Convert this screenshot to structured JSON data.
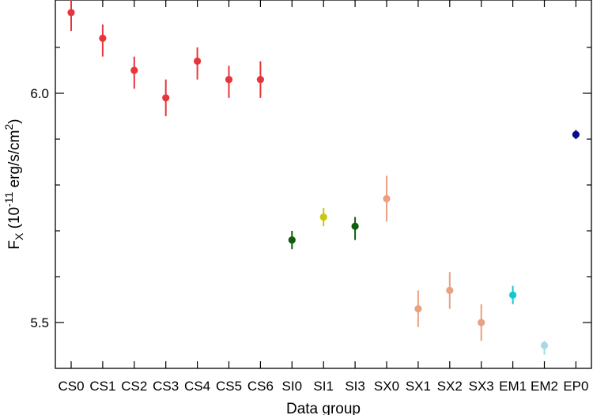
{
  "chart_data": {
    "type": "scatter",
    "xlabel": "Data group",
    "ylabel": {
      "base": "F",
      "sub": "X",
      "open": " (10",
      "exp": "-11",
      "unit": " erg/s/cm",
      "sq": "2",
      "close": ")"
    },
    "ylim": [
      5.4,
      6.18
    ],
    "yticks_major": [
      5.5,
      6.0
    ],
    "ytick_labels": [
      "5.5",
      "6.0"
    ],
    "yticks_minor": [
      5.6,
      5.7,
      5.8,
      5.9,
      6.1
    ],
    "grid": false,
    "categories": [
      "CS0",
      "CS1",
      "CS2",
      "CS3",
      "CS4",
      "CS5",
      "CS6",
      "SI0",
      "SI1",
      "SI3",
      "SX0",
      "SX1",
      "SX2",
      "SX3",
      "EM1",
      "EM2",
      "EP0"
    ],
    "points": [
      {
        "x": "CS0",
        "y": 6.176,
        "err_low": 0.04,
        "err_high": 0.04,
        "color": "#e8353b"
      },
      {
        "x": "CS1",
        "y": 6.12,
        "err_low": 0.04,
        "err_high": 0.03,
        "color": "#e8353b"
      },
      {
        "x": "CS2",
        "y": 6.05,
        "err_low": 0.04,
        "err_high": 0.03,
        "color": "#e8353b"
      },
      {
        "x": "CS3",
        "y": 5.99,
        "err_low": 0.04,
        "err_high": 0.04,
        "color": "#e8353b"
      },
      {
        "x": "CS4",
        "y": 6.07,
        "err_low": 0.04,
        "err_high": 0.03,
        "color": "#e8353b"
      },
      {
        "x": "CS5",
        "y": 6.03,
        "err_low": 0.04,
        "err_high": 0.03,
        "color": "#e8353b"
      },
      {
        "x": "CS6",
        "y": 6.03,
        "err_low": 0.04,
        "err_high": 0.04,
        "color": "#e8353b"
      },
      {
        "x": "SI0",
        "y": 5.68,
        "err_low": 0.02,
        "err_high": 0.02,
        "color": "#0c5f0c"
      },
      {
        "x": "SI1",
        "y": 5.73,
        "err_low": 0.02,
        "err_high": 0.02,
        "color": "#c8c814"
      },
      {
        "x": "SI3",
        "y": 5.71,
        "err_low": 0.03,
        "err_high": 0.02,
        "color": "#0c5f0c"
      },
      {
        "x": "SX0",
        "y": 5.77,
        "err_low": 0.05,
        "err_high": 0.05,
        "color": "#e9a083"
      },
      {
        "x": "SX1",
        "y": 5.53,
        "err_low": 0.04,
        "err_high": 0.04,
        "color": "#e9a083"
      },
      {
        "x": "SX2",
        "y": 5.57,
        "err_low": 0.04,
        "err_high": 0.04,
        "color": "#e9a083"
      },
      {
        "x": "SX3",
        "y": 5.5,
        "err_low": 0.04,
        "err_high": 0.04,
        "color": "#e9a083"
      },
      {
        "x": "EM1",
        "y": 5.56,
        "err_low": 0.02,
        "err_high": 0.02,
        "color": "#14c8d2"
      },
      {
        "x": "EM2",
        "y": 5.45,
        "err_low": 0.02,
        "err_high": 0.01,
        "color": "#a8d8e6"
      },
      {
        "x": "EP0",
        "y": 5.91,
        "err_low": 0.01,
        "err_high": 0.01,
        "color": "#0a0a8c"
      }
    ]
  }
}
